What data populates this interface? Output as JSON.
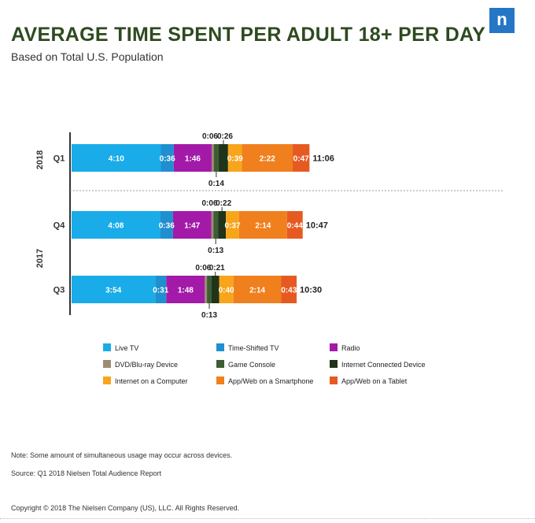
{
  "header": {
    "title": "AVERAGE TIME SPENT PER ADULT 18+ PER DAY",
    "subtitle": "Based on Total U.S. Population",
    "logo": "n"
  },
  "chart_data": {
    "type": "bar",
    "stacked": true,
    "orientation": "horizontal",
    "year_groups": [
      {
        "label": "2018",
        "rows": [
          "Q1"
        ]
      },
      {
        "label": "2017",
        "rows": [
          "Q4",
          "Q3"
        ]
      }
    ],
    "categories": [
      "Q1",
      "Q4",
      "Q3"
    ],
    "series": [
      {
        "name": "Live TV",
        "color": "#19ace8",
        "values": [
          250,
          248,
          234
        ],
        "labels": [
          "4:10",
          "4:08",
          "3:54"
        ]
      },
      {
        "name": "Time-Shifted TV",
        "color": "#1f8fd0",
        "values": [
          36,
          36,
          31
        ],
        "labels": [
          "0:36",
          "0:36",
          "0:31"
        ]
      },
      {
        "name": "Radio",
        "color": "#a31aa8",
        "values": [
          106,
          107,
          108
        ],
        "labels": [
          "1:46",
          "1:47",
          "1:48"
        ]
      },
      {
        "name": "DVD/Blu-ray Device",
        "color": "#9e8b74",
        "values": [
          6,
          6,
          6
        ],
        "labels": [
          "0:06",
          "0:06",
          "0:06"
        ]
      },
      {
        "name": "Game Console",
        "color": "#3d5d33",
        "values": [
          14,
          13,
          13
        ],
        "labels": [
          "0:14",
          "0:13",
          "0:13"
        ]
      },
      {
        "name": "Internet Connected Device",
        "color": "#1f3419",
        "values": [
          26,
          22,
          21
        ],
        "labels": [
          "0:26",
          "0:22",
          "0:21"
        ]
      },
      {
        "name": "Internet on a Computer",
        "color": "#f8a51b",
        "values": [
          39,
          37,
          40
        ],
        "labels": [
          "0:39",
          "0:37",
          "0:40"
        ]
      },
      {
        "name": "App/Web on a Smartphone",
        "color": "#f07f1e",
        "values": [
          142,
          134,
          134
        ],
        "labels": [
          "2:22",
          "2:14",
          "2:14"
        ]
      },
      {
        "name": "App/Web on a Tablet",
        "color": "#e65a22",
        "values": [
          47,
          44,
          43
        ],
        "labels": [
          "0:47",
          "0:44",
          "0:43"
        ]
      }
    ],
    "totals": [
      "11:06",
      "10:47",
      "10:30"
    ],
    "units": "hours:minutes"
  },
  "notes": {
    "note": "Note:  Some amount of simultaneous usage may occur across devices.",
    "source": "Source: Q1 2018 Nielsen Total Audience Report",
    "copyright": "Copyright © 2018 The Nielsen Company (US), LLC. All Rights Reserved."
  }
}
